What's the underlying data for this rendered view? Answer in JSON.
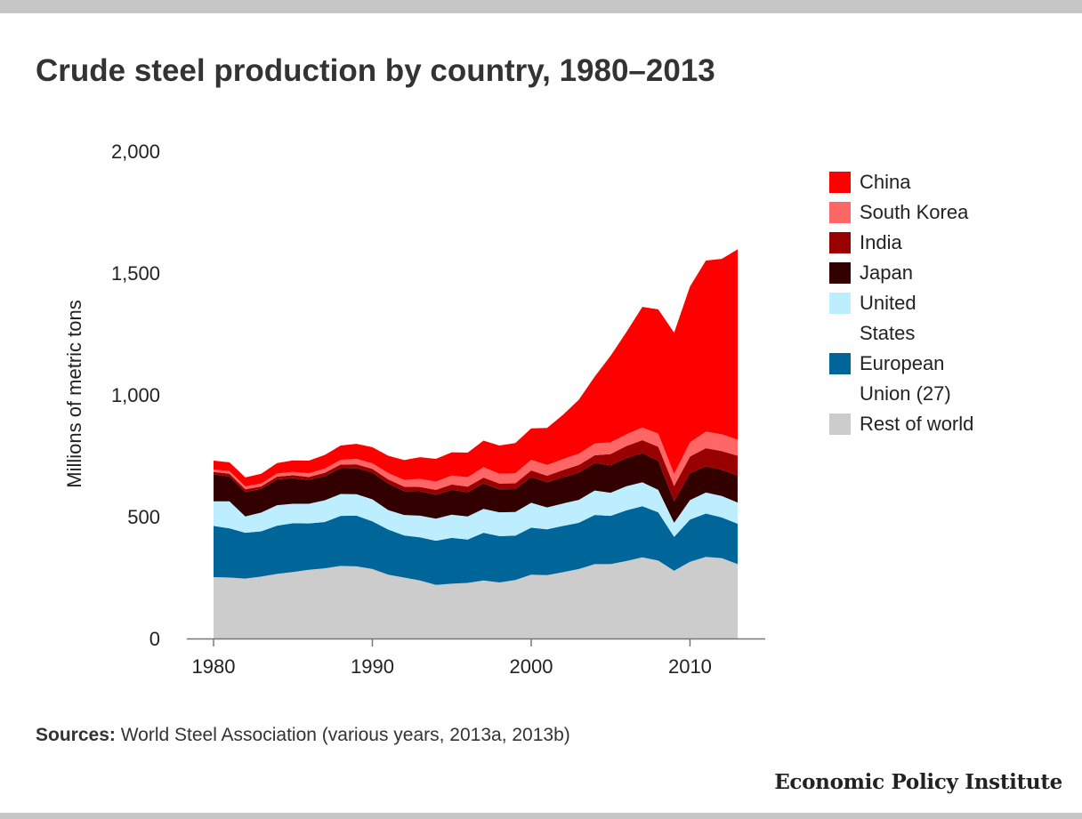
{
  "title": "Crude steel production by country, 1980–2013",
  "sources_label": "Sources:",
  "sources_text": " World Steel Association (various years, 2013a, 2013b)",
  "brand": "Economic Policy Institute",
  "chart_data": {
    "type": "area",
    "stacked": true,
    "title": "Crude steel production by country, 1980–2013",
    "xlabel": "",
    "ylabel": "Millions of metric tons",
    "ylim": [
      0,
      2000
    ],
    "xlim": [
      1980,
      2014.5
    ],
    "x_ticks": [
      1980,
      1990,
      2000,
      2010
    ],
    "x_tick_labels": [
      "1980",
      "1990",
      "2000",
      "2010"
    ],
    "y_ticks": [
      0,
      500,
      1000,
      1500,
      2000
    ],
    "y_tick_labels": [
      "0",
      "500",
      "1,000",
      "1,500",
      "2,000"
    ],
    "grid": false,
    "legend_position": "right",
    "x": [
      1980,
      1981,
      1982,
      1983,
      1984,
      1985,
      1986,
      1987,
      1988,
      1989,
      1990,
      1991,
      1992,
      1993,
      1994,
      1995,
      1996,
      1997,
      1998,
      1999,
      2000,
      2001,
      2002,
      2003,
      2004,
      2005,
      2006,
      2007,
      2008,
      2009,
      2010,
      2011,
      2012,
      2013
    ],
    "series": [
      {
        "name": "Rest of world",
        "color": "#cccccc",
        "values": [
          252,
          250,
          246,
          254,
          265,
          273,
          282,
          288,
          298,
          296,
          285,
          262,
          250,
          238,
          220,
          225,
          228,
          238,
          230,
          240,
          262,
          260,
          272,
          285,
          305,
          305,
          318,
          333,
          320,
          278,
          315,
          335,
          330,
          305
        ]
      },
      {
        "name": "European Union (27)",
        "color": "#006699",
        "values": [
          210,
          202,
          188,
          186,
          198,
          200,
          190,
          190,
          205,
          208,
          196,
          185,
          173,
          177,
          181,
          188,
          178,
          196,
          190,
          182,
          193,
          188,
          190,
          190,
          202,
          198,
          208,
          210,
          198,
          139,
          173,
          178,
          167,
          166
        ]
      },
      {
        "name": "United States",
        "color": "#bdeeff",
        "values": [
          101,
          111,
          67,
          77,
          84,
          80,
          81,
          89,
          90,
          88,
          90,
          80,
          84,
          89,
          91,
          95,
          95,
          98,
          98,
          97,
          102,
          90,
          92,
          94,
          100,
          95,
          99,
          98,
          92,
          58,
          80,
          86,
          88,
          87
        ]
      },
      {
        "name": "Japan",
        "color": "#330000",
        "values": [
          111,
          102,
          100,
          97,
          106,
          105,
          98,
          99,
          106,
          108,
          110,
          109,
          98,
          100,
          98,
          102,
          99,
          104,
          94,
          94,
          106,
          103,
          108,
          111,
          113,
          113,
          116,
          120,
          119,
          88,
          110,
          108,
          107,
          111
        ]
      },
      {
        "name": "India",
        "color": "#990000",
        "values": [
          10,
          11,
          11,
          10,
          11,
          12,
          12,
          14,
          15,
          15,
          15,
          17,
          18,
          18,
          20,
          22,
          23,
          24,
          24,
          24,
          27,
          27,
          29,
          32,
          32,
          46,
          49,
          53,
          58,
          63,
          69,
          74,
          77,
          81
        ]
      },
      {
        "name": "South Korea",
        "color": "#ff6666",
        "values": [
          9,
          11,
          12,
          12,
          13,
          14,
          15,
          17,
          19,
          22,
          23,
          26,
          28,
          33,
          34,
          37,
          39,
          43,
          40,
          41,
          43,
          44,
          45,
          46,
          48,
          48,
          48,
          52,
          54,
          49,
          58,
          68,
          69,
          66
        ]
      },
      {
        "name": "China",
        "color": "#ff0000",
        "values": [
          37,
          36,
          37,
          40,
          43,
          47,
          52,
          56,
          59,
          62,
          66,
          71,
          81,
          89,
          93,
          95,
          101,
          109,
          116,
          124,
          129,
          152,
          182,
          222,
          275,
          355,
          420,
          495,
          510,
          580,
          640,
          702,
          720,
          781
        ]
      }
    ]
  }
}
